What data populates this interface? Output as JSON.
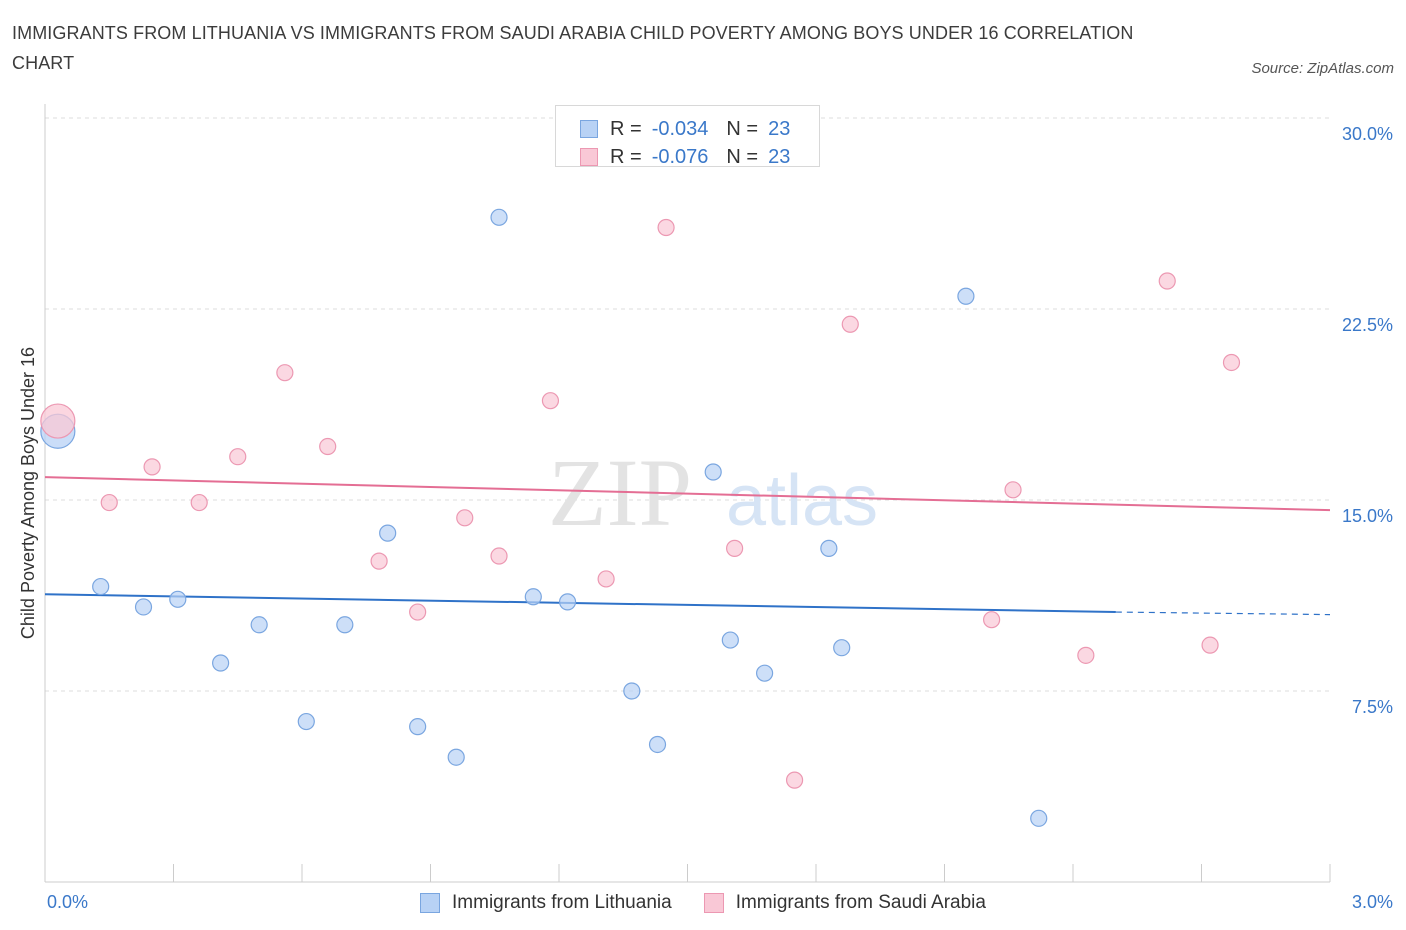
{
  "title": "IMMIGRANTS FROM LITHUANIA VS IMMIGRANTS FROM SAUDI ARABIA CHILD POVERTY AMONG BOYS UNDER 16 CORRELATION CHART",
  "source": "Source: ZipAtlas.com",
  "watermark": {
    "zip": "ZIP",
    "atlas": "atlas"
  },
  "legend_top": [
    {
      "r_label": "R =",
      "r_value": "-0.034",
      "n_label": "N =",
      "n_value": "23"
    },
    {
      "r_label": "R =",
      "r_value": "-0.076",
      "n_label": "N =",
      "n_value": "23"
    }
  ],
  "colors": {
    "blue_fill": "#b8d2f5",
    "blue_stroke": "#7aa6e0",
    "blue_line": "#2f72c8",
    "pink_fill": "#f9c8d6",
    "pink_stroke": "#ec98b2",
    "pink_line": "#e46e94",
    "tick_label": "#3a78c9",
    "grid": "#dddddd"
  },
  "chart_data": {
    "type": "scatter",
    "ylabel": "Child Poverty Among Boys Under 16",
    "xlim": [
      0,
      3.0
    ],
    "ylim": [
      0,
      30.0
    ],
    "y_ticks": [
      {
        "value": 7.5,
        "label": "7.5%"
      },
      {
        "value": 15.0,
        "label": "15.0%"
      },
      {
        "value": 22.5,
        "label": "22.5%"
      },
      {
        "value": 30.0,
        "label": "30.0%"
      }
    ],
    "x_tick_labels": [
      {
        "value": 0,
        "label": "0.0%"
      },
      {
        "value": 3.0,
        "label": "3.0%"
      }
    ],
    "grid": true,
    "legend_position": "bottom",
    "series": [
      {
        "name": "Immigrants from Lithuania",
        "color": "blue",
        "points": [
          {
            "x": 0.03,
            "y": 17.7,
            "big": true
          },
          {
            "x": 0.13,
            "y": 11.6
          },
          {
            "x": 0.23,
            "y": 10.8
          },
          {
            "x": 0.31,
            "y": 11.1
          },
          {
            "x": 0.41,
            "y": 8.6
          },
          {
            "x": 0.5,
            "y": 10.1
          },
          {
            "x": 0.61,
            "y": 6.3
          },
          {
            "x": 0.7,
            "y": 10.1
          },
          {
            "x": 0.8,
            "y": 13.7
          },
          {
            "x": 0.87,
            "y": 6.1
          },
          {
            "x": 0.96,
            "y": 4.9
          },
          {
            "x": 1.06,
            "y": 26.1
          },
          {
            "x": 1.14,
            "y": 11.2
          },
          {
            "x": 1.22,
            "y": 11.0
          },
          {
            "x": 1.37,
            "y": 7.5
          },
          {
            "x": 1.43,
            "y": 5.4
          },
          {
            "x": 1.56,
            "y": 16.1
          },
          {
            "x": 1.6,
            "y": 9.5
          },
          {
            "x": 1.68,
            "y": 8.2
          },
          {
            "x": 1.83,
            "y": 13.1
          },
          {
            "x": 1.86,
            "y": 9.2
          },
          {
            "x": 2.15,
            "y": 23.0
          },
          {
            "x": 2.32,
            "y": 2.5
          }
        ],
        "trend": {
          "x0": 0.0,
          "y0": 11.3,
          "x1": 2.5,
          "y1": 10.6,
          "dash_to": 3.0,
          "dash_y": 10.5
        }
      },
      {
        "name": "Immigrants from Saudi Arabia",
        "color": "pink",
        "points": [
          {
            "x": 0.03,
            "y": 18.1,
            "big": true
          },
          {
            "x": 0.15,
            "y": 14.9
          },
          {
            "x": 0.25,
            "y": 16.3
          },
          {
            "x": 0.36,
            "y": 14.9
          },
          {
            "x": 0.45,
            "y": 16.7
          },
          {
            "x": 0.56,
            "y": 20.0
          },
          {
            "x": 0.66,
            "y": 17.1
          },
          {
            "x": 0.78,
            "y": 12.6
          },
          {
            "x": 0.87,
            "y": 10.6
          },
          {
            "x": 0.98,
            "y": 14.3
          },
          {
            "x": 1.06,
            "y": 12.8
          },
          {
            "x": 1.18,
            "y": 18.9
          },
          {
            "x": 1.31,
            "y": 11.9
          },
          {
            "x": 1.45,
            "y": 25.7
          },
          {
            "x": 1.61,
            "y": 13.1
          },
          {
            "x": 1.75,
            "y": 4.0
          },
          {
            "x": 1.88,
            "y": 21.9
          },
          {
            "x": 2.21,
            "y": 10.3
          },
          {
            "x": 2.26,
            "y": 15.4
          },
          {
            "x": 2.43,
            "y": 8.9
          },
          {
            "x": 2.62,
            "y": 23.6
          },
          {
            "x": 2.72,
            "y": 9.3
          },
          {
            "x": 2.77,
            "y": 20.4
          }
        ],
        "trend": {
          "x0": 0.0,
          "y0": 15.9,
          "x1": 3.0,
          "y1": 14.6
        }
      }
    ]
  }
}
